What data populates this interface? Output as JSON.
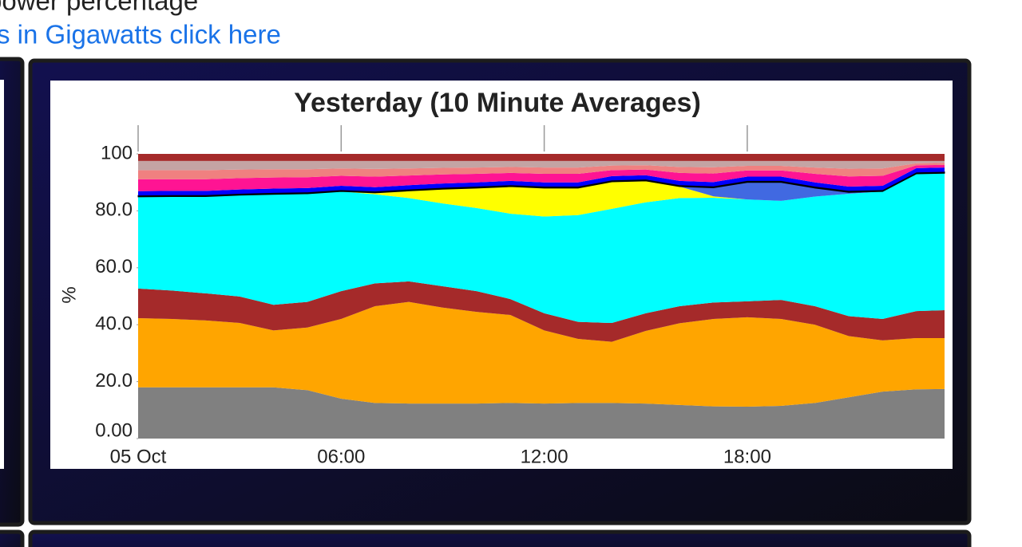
{
  "header": {
    "subtitle": "power percentage",
    "link": "s in Gigawatts click here"
  },
  "chart_data": {
    "type": "stacked_area",
    "title": "Yesterday (10 Minute Averages)",
    "ylabel": "%",
    "x": [
      0,
      1,
      2,
      3,
      4,
      5,
      6,
      7,
      8,
      9,
      10,
      11,
      12,
      13,
      14,
      15,
      16,
      17,
      18,
      19,
      20,
      21,
      22,
      23,
      23.83
    ],
    "xlim": [
      0,
      23.83
    ],
    "xticks": [
      {
        "value": 0,
        "label": "05 Oct"
      },
      {
        "value": 6,
        "label": "06:00"
      },
      {
        "value": 12,
        "label": "12:00"
      },
      {
        "value": 18,
        "label": "18:00"
      }
    ],
    "ylim": [
      0,
      100
    ],
    "yticks": [
      {
        "value": 0,
        "label": "0.00"
      },
      {
        "value": 20,
        "label": "20.0"
      },
      {
        "value": 40,
        "label": "40.0"
      },
      {
        "value": 60,
        "label": "60.0"
      },
      {
        "value": 80,
        "label": "80.0"
      },
      100
    ],
    "series": [
      {
        "color": "#808080",
        "values": [
          18,
          18,
          18,
          18,
          18,
          17,
          14,
          12.5,
          12.3,
          12.3,
          12.3,
          12.5,
          12.3,
          12.5,
          12.5,
          12.3,
          11.8,
          11.3,
          11.2,
          11.5,
          12.5,
          14.5,
          16.5,
          17.3,
          17.4
        ]
      },
      {
        "color": "#ffa500",
        "values": [
          24.3,
          24,
          23.5,
          22.6,
          20,
          22,
          28,
          34,
          35.7,
          33.7,
          32.2,
          30.9,
          25.7,
          22.5,
          21.5,
          25.5,
          28.7,
          30.7,
          31.4,
          30.5,
          27.5,
          21.5,
          18,
          18,
          17.9
        ]
      },
      {
        "color": "#a52a2a",
        "values": [
          10.4,
          10,
          9.5,
          9.3,
          9,
          9,
          9.8,
          8,
          7.2,
          7.5,
          7.3,
          5.6,
          6,
          6,
          6.6,
          6.2,
          6,
          5.8,
          5.6,
          6.7,
          6.5,
          7,
          7.5,
          9.5,
          9.8
        ]
      },
      {
        "color": "#00ffff",
        "values": [
          32.2,
          33,
          34,
          35.6,
          38.8,
          38,
          35,
          31.3,
          29.3,
          29.1,
          29.2,
          30,
          34,
          37.5,
          40.1,
          39,
          38,
          36.8,
          35.8,
          34.8,
          38.5,
          43,
          44.8,
          48.2,
          48.1
        ]
      },
      {
        "color": "#ffff00",
        "values": [
          0,
          0,
          0,
          0,
          0,
          0,
          0,
          0.5,
          2.5,
          5,
          7,
          9.5,
          10,
          9.5,
          9.5,
          7.5,
          4,
          0.5,
          0,
          0,
          0,
          0,
          0,
          0,
          0
        ]
      },
      {
        "color": "#4169e1",
        "values": [
          0,
          0,
          0,
          0,
          0,
          0,
          0,
          0,
          0,
          0,
          0,
          0,
          0,
          0,
          0,
          0,
          0,
          3,
          6,
          6.5,
          3,
          0.5,
          0,
          0,
          0
        ]
      },
      {
        "color": "#000000",
        "values": [
          0.5,
          0.5,
          0.5,
          0.5,
          0.5,
          0.5,
          0.5,
          0.5,
          0.5,
          0.5,
          0.5,
          0.5,
          0.5,
          0.5,
          0.5,
          0.5,
          0.5,
          0.5,
          0.5,
          0.5,
          0.5,
          0.5,
          0.5,
          0.5,
          0.5
        ]
      },
      {
        "color": "#0000ff",
        "values": [
          1.5,
          1.5,
          1.5,
          1.5,
          1.5,
          1.5,
          1.5,
          1.5,
          1.5,
          1.5,
          1.5,
          1.5,
          1.5,
          1.5,
          1.5,
          1.5,
          1.5,
          1.5,
          1.5,
          1.5,
          1.5,
          1.5,
          1.5,
          1.5,
          1.5
        ]
      },
      {
        "color": "#ff1493",
        "values": [
          4.2,
          4.1,
          4.1,
          4,
          3.9,
          3.8,
          3.5,
          3.7,
          3.4,
          3.2,
          3,
          2.8,
          3,
          3,
          2.1,
          2,
          2.8,
          3,
          2.2,
          2.2,
          3,
          3.6,
          3.5,
          1,
          0.9
        ]
      },
      {
        "color": "#f08080",
        "values": [
          3.2,
          3.2,
          3.2,
          3,
          2.9,
          2.8,
          2.6,
          2.7,
          2.5,
          2.3,
          2.2,
          2.1,
          2.2,
          2.2,
          1.6,
          1.5,
          2.1,
          2.2,
          1.6,
          1.6,
          2.2,
          2.7,
          2.6,
          0.7,
          0.7
        ]
      },
      {
        "color": "#c4a4a4",
        "values": [
          3.2,
          3.2,
          3.2,
          3,
          2.9,
          2.9,
          2.6,
          2.8,
          2.6,
          2.4,
          2.3,
          2.1,
          2.3,
          2.3,
          1.6,
          1.5,
          2.1,
          2.2,
          1.7,
          1.7,
          2.3,
          2.7,
          2.6,
          0.8,
          0.7
        ]
      },
      {
        "color": "#a52a2a",
        "values": [
          2.5,
          2.5,
          2.5,
          2.5,
          2.5,
          2.5,
          2.5,
          2.5,
          2.5,
          2.5,
          2.5,
          2.5,
          2.5,
          2.5,
          2.5,
          2.5,
          2.5,
          2.5,
          2.5,
          2.5,
          2.5,
          2.5,
          2.5,
          2.5,
          2.5
        ]
      }
    ]
  }
}
